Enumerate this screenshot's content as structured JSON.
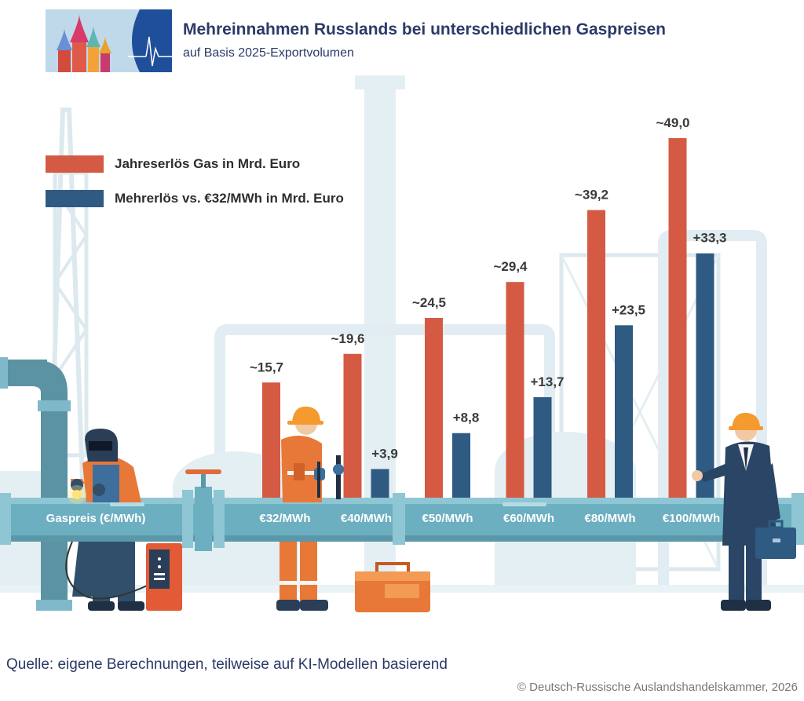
{
  "header": {
    "title": "Mehreinnahmen Russlands bei unterschiedlichen Gaspreisen",
    "subtitle": "auf Basis 2025-Exportvolumen"
  },
  "legend": {
    "revenue": "Jahreserlös Gas in Mrd. Euro",
    "extra": "Mehrerlös vs. €32/MWh in Mrd. Euro"
  },
  "colors": {
    "revenue": "#d45a43",
    "extra": "#2f5a82",
    "pipe": "#6cafc0",
    "background_plant": "#e3eff3",
    "title": "#2b3a67"
  },
  "chart_data": {
    "type": "bar",
    "title": "Mehreinnahmen Russlands bei unterschiedlichen Gaspreisen",
    "subtitle": "auf Basis 2025-Exportvolumen",
    "xlabel": "Gaspreis (€/MWh)",
    "ylabel": "",
    "ylim": [
      0,
      49
    ],
    "categories": [
      "€32/MWh",
      "€40/MWh",
      "€50/MWh",
      "€60/MWh",
      "€80/MWh",
      "€100/MWh"
    ],
    "series": [
      {
        "name": "Jahreserlös Gas in Mrd. Euro",
        "values": [
          15.7,
          19.6,
          24.5,
          29.4,
          39.2,
          49.0
        ],
        "labels": [
          "~15,7",
          "~19,6",
          "~24,5",
          "~29,4",
          "~39,2",
          "~49,0"
        ]
      },
      {
        "name": "Mehrerlös vs. €32/MWh in Mrd. Euro",
        "values": [
          null,
          3.9,
          8.8,
          13.7,
          23.5,
          33.3
        ],
        "labels": [
          "",
          "+3,9",
          "+8,8",
          "+13,7",
          "+23,5",
          "+33,3"
        ]
      }
    ],
    "legend": "top-left",
    "grid": false
  },
  "footer": {
    "source": "Quelle: eigene Berechnungen, teilweise auf KI-Modellen basierend",
    "copyright": "© Deutsch-Russische Auslandshandelskammer, 2026"
  }
}
